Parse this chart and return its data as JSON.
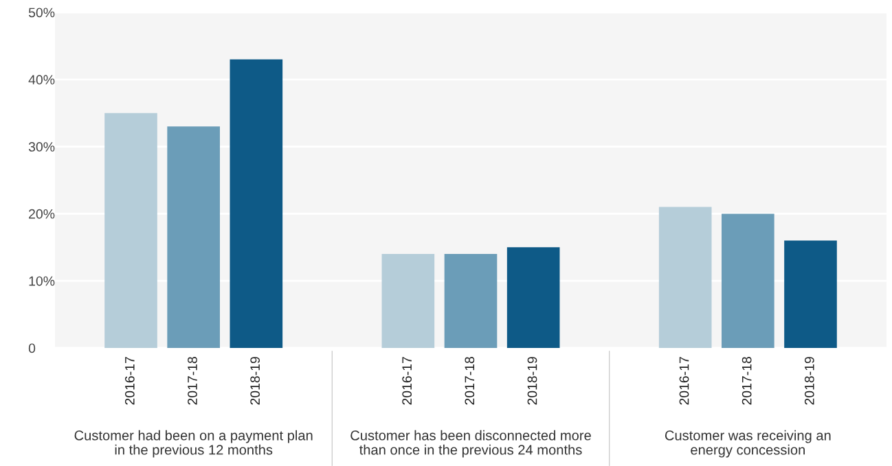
{
  "chart_data": {
    "type": "bar",
    "categories": [
      "Customer had been on a payment plan\nin the previous 12 months",
      "Customer has been disconnected more\nthan once in the previous 24 months",
      "Customer was receiving an\nenergy concession"
    ],
    "series": [
      {
        "name": "2016-17",
        "color": "#b5cdd9",
        "values": [
          35,
          14,
          21
        ]
      },
      {
        "name": "2017-18",
        "color": "#6b9db8",
        "values": [
          33,
          14,
          20
        ]
      },
      {
        "name": "2018-19",
        "color": "#0e5a87",
        "values": [
          43,
          15,
          16
        ]
      }
    ],
    "ylim": [
      0,
      50
    ],
    "yticks": [
      {
        "value": 0,
        "label": "0"
      },
      {
        "value": 10,
        "label": "10%"
      },
      {
        "value": 20,
        "label": "20%"
      },
      {
        "value": 30,
        "label": "30%"
      },
      {
        "value": 40,
        "label": "40%"
      },
      {
        "value": 50,
        "label": "50%"
      }
    ],
    "grid": "y"
  }
}
